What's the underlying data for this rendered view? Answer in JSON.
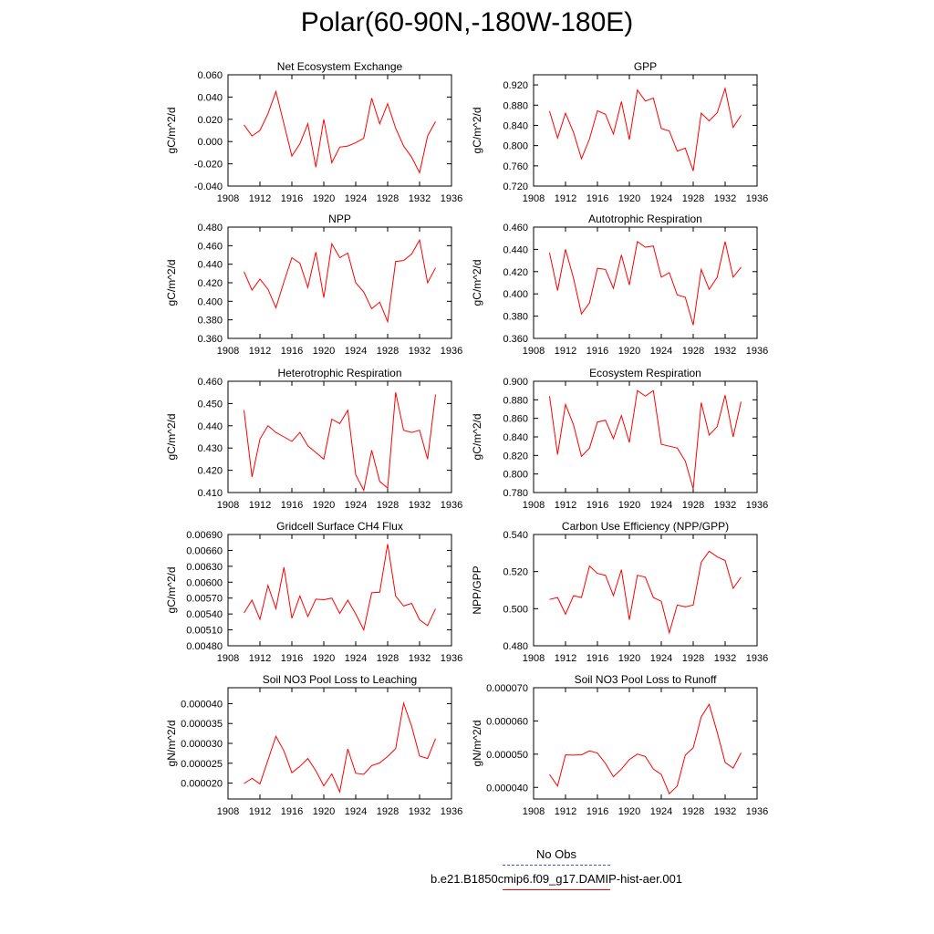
{
  "title": "Polar(60-90N,-180W-180E)",
  "colors": {
    "model": "#ff0000",
    "obs": "#4b4bd6",
    "axis": "#000000"
  },
  "legend": {
    "obs_label": "No Obs",
    "model_label": "b.e21.B1850cmip6.f09_g17.DAMIP-hist-aer.001"
  },
  "chart_data": [
    {
      "type": "line",
      "title": "Net Ecosystem Exchange",
      "xlabel": "",
      "ylabel": "gC/m^2/d",
      "xlim": [
        1908,
        1936
      ],
      "ylim": [
        -0.04,
        0.06
      ],
      "xticks": [
        1908,
        1912,
        1916,
        1920,
        1924,
        1928,
        1932,
        1936
      ],
      "xtick_labels": [
        "1908",
        "1912",
        "1916",
        "1920",
        "1924",
        "1928",
        "1932",
        "1936"
      ],
      "yticks": [
        -0.04,
        -0.02,
        0.0,
        0.02,
        0.04,
        0.06
      ],
      "ytick_labels": [
        "-0.040",
        "-0.020",
        "0.000",
        "0.020",
        "0.040",
        "0.060"
      ],
      "x": [
        1910,
        1911,
        1912,
        1913,
        1914,
        1915,
        1916,
        1917,
        1918,
        1919,
        1920,
        1921,
        1922,
        1923,
        1924,
        1925,
        1926,
        1927,
        1928,
        1929,
        1930,
        1931,
        1932,
        1933,
        1934
      ],
      "series": [
        {
          "values": [
            0.015,
            0.005,
            0.01,
            0.025,
            0.045,
            0.016,
            -0.013,
            -0.002,
            0.016,
            -0.023,
            0.02,
            -0.019,
            -0.005,
            -0.004,
            -0.001,
            0.003,
            0.039,
            0.016,
            0.034,
            0.012,
            -0.004,
            -0.014,
            -0.028,
            0.005,
            0.018
          ]
        }
      ]
    },
    {
      "type": "line",
      "title": "GPP",
      "xlabel": "",
      "ylabel": "gC/m^2/d",
      "xlim": [
        1908,
        1936
      ],
      "ylim": [
        0.72,
        0.94
      ],
      "xticks": [
        1908,
        1912,
        1916,
        1920,
        1924,
        1928,
        1932,
        1936
      ],
      "xtick_labels": [
        "1908",
        "1912",
        "1916",
        "1920",
        "1924",
        "1928",
        "1932",
        "1936"
      ],
      "yticks": [
        0.72,
        0.76,
        0.8,
        0.84,
        0.88,
        0.92
      ],
      "ytick_labels": [
        "0.720",
        "0.760",
        "0.800",
        "0.840",
        "0.880",
        "0.920"
      ],
      "x": [
        1910,
        1911,
        1912,
        1913,
        1914,
        1915,
        1916,
        1917,
        1918,
        1919,
        1920,
        1921,
        1922,
        1923,
        1924,
        1925,
        1926,
        1927,
        1928,
        1929,
        1930,
        1931,
        1932,
        1933,
        1934
      ],
      "series": [
        {
          "values": [
            0.868,
            0.815,
            0.864,
            0.826,
            0.774,
            0.813,
            0.869,
            0.862,
            0.823,
            0.887,
            0.812,
            0.91,
            0.888,
            0.894,
            0.834,
            0.829,
            0.789,
            0.795,
            0.75,
            0.864,
            0.849,
            0.865,
            0.913,
            0.836,
            0.86
          ]
        }
      ]
    },
    {
      "type": "line",
      "title": "NPP",
      "xlabel": "",
      "ylabel": "gC/m^2/d",
      "xlim": [
        1908,
        1936
      ],
      "ylim": [
        0.36,
        0.48
      ],
      "xticks": [
        1908,
        1912,
        1916,
        1920,
        1924,
        1928,
        1932,
        1936
      ],
      "xtick_labels": [
        "1908",
        "1912",
        "1916",
        "1920",
        "1924",
        "1928",
        "1932",
        "1936"
      ],
      "yticks": [
        0.36,
        0.38,
        0.4,
        0.42,
        0.44,
        0.46,
        0.48
      ],
      "ytick_labels": [
        "0.360",
        "0.380",
        "0.400",
        "0.420",
        "0.440",
        "0.460",
        "0.480"
      ],
      "x": [
        1910,
        1911,
        1912,
        1913,
        1914,
        1915,
        1916,
        1917,
        1918,
        1919,
        1920,
        1921,
        1922,
        1923,
        1924,
        1925,
        1926,
        1927,
        1928,
        1929,
        1930,
        1931,
        1932,
        1933,
        1934
      ],
      "series": [
        {
          "values": [
            0.432,
            0.412,
            0.424,
            0.413,
            0.393,
            0.421,
            0.447,
            0.441,
            0.415,
            0.453,
            0.404,
            0.462,
            0.447,
            0.452,
            0.42,
            0.41,
            0.392,
            0.399,
            0.378,
            0.443,
            0.444,
            0.451,
            0.466,
            0.42,
            0.436
          ]
        }
      ]
    },
    {
      "type": "line",
      "title": "Autotrophic Respiration",
      "xlabel": "",
      "ylabel": "gC/m^2/d",
      "xlim": [
        1908,
        1936
      ],
      "ylim": [
        0.36,
        0.46
      ],
      "xticks": [
        1908,
        1912,
        1916,
        1920,
        1924,
        1928,
        1932,
        1936
      ],
      "xtick_labels": [
        "1908",
        "1912",
        "1916",
        "1920",
        "1924",
        "1928",
        "1932",
        "1936"
      ],
      "yticks": [
        0.36,
        0.38,
        0.4,
        0.42,
        0.44,
        0.46
      ],
      "ytick_labels": [
        "0.360",
        "0.380",
        "0.400",
        "0.420",
        "0.440",
        "0.460"
      ],
      "x": [
        1910,
        1911,
        1912,
        1913,
        1914,
        1915,
        1916,
        1917,
        1918,
        1919,
        1920,
        1921,
        1922,
        1923,
        1924,
        1925,
        1926,
        1927,
        1928,
        1929,
        1930,
        1931,
        1932,
        1933,
        1934
      ],
      "series": [
        {
          "values": [
            0.437,
            0.403,
            0.44,
            0.414,
            0.382,
            0.392,
            0.423,
            0.422,
            0.405,
            0.435,
            0.408,
            0.447,
            0.442,
            0.443,
            0.415,
            0.419,
            0.399,
            0.397,
            0.372,
            0.422,
            0.404,
            0.415,
            0.447,
            0.415,
            0.424
          ]
        }
      ]
    },
    {
      "type": "line",
      "title": "Heterotrophic Respiration",
      "xlabel": "",
      "ylabel": "gC/m^2/d",
      "xlim": [
        1908,
        1936
      ],
      "ylim": [
        0.41,
        0.46
      ],
      "xticks": [
        1908,
        1912,
        1916,
        1920,
        1924,
        1928,
        1932,
        1936
      ],
      "xtick_labels": [
        "1908",
        "1912",
        "1916",
        "1920",
        "1924",
        "1928",
        "1932",
        "1936"
      ],
      "yticks": [
        0.41,
        0.42,
        0.43,
        0.44,
        0.45,
        0.46
      ],
      "ytick_labels": [
        "0.410",
        "0.420",
        "0.430",
        "0.440",
        "0.450",
        "0.460"
      ],
      "x": [
        1910,
        1911,
        1912,
        1913,
        1914,
        1915,
        1916,
        1917,
        1918,
        1919,
        1920,
        1921,
        1922,
        1923,
        1924,
        1925,
        1926,
        1927,
        1928,
        1929,
        1930,
        1931,
        1932,
        1933,
        1934
      ],
      "series": [
        {
          "values": [
            0.447,
            0.417,
            0.434,
            0.44,
            0.437,
            0.435,
            0.433,
            0.437,
            0.431,
            0.428,
            0.425,
            0.443,
            0.441,
            0.447,
            0.418,
            0.411,
            0.429,
            0.415,
            0.412,
            0.455,
            0.438,
            0.437,
            0.438,
            0.425,
            0.454
          ]
        }
      ]
    },
    {
      "type": "line",
      "title": "Ecosystem Respiration",
      "xlabel": "",
      "ylabel": "gC/m^2/d",
      "xlim": [
        1908,
        1936
      ],
      "ylim": [
        0.78,
        0.9
      ],
      "xticks": [
        1908,
        1912,
        1916,
        1920,
        1924,
        1928,
        1932,
        1936
      ],
      "xtick_labels": [
        "1908",
        "1912",
        "1916",
        "1920",
        "1924",
        "1928",
        "1932",
        "1936"
      ],
      "yticks": [
        0.78,
        0.8,
        0.82,
        0.84,
        0.86,
        0.88,
        0.9
      ],
      "ytick_labels": [
        "0.780",
        "0.800",
        "0.820",
        "0.840",
        "0.860",
        "0.880",
        "0.900"
      ],
      "x": [
        1910,
        1911,
        1912,
        1913,
        1914,
        1915,
        1916,
        1917,
        1918,
        1919,
        1920,
        1921,
        1922,
        1923,
        1924,
        1925,
        1926,
        1927,
        1928,
        1929,
        1930,
        1931,
        1932,
        1933,
        1934
      ],
      "series": [
        {
          "values": [
            0.884,
            0.821,
            0.875,
            0.853,
            0.819,
            0.828,
            0.856,
            0.858,
            0.838,
            0.863,
            0.834,
            0.89,
            0.884,
            0.89,
            0.832,
            0.83,
            0.828,
            0.814,
            0.784,
            0.877,
            0.842,
            0.851,
            0.885,
            0.84,
            0.878
          ]
        }
      ]
    },
    {
      "type": "line",
      "title": "Gridcell Surface CH4 Flux",
      "xlabel": "",
      "ylabel": "gC/m^2/d",
      "xlim": [
        1908,
        1936
      ],
      "ylim": [
        0.0048,
        0.0069
      ],
      "xticks": [
        1908,
        1912,
        1916,
        1920,
        1924,
        1928,
        1932,
        1936
      ],
      "xtick_labels": [
        "1908",
        "1912",
        "1916",
        "1920",
        "1924",
        "1928",
        "1932",
        "1936"
      ],
      "yticks": [
        0.0048,
        0.0051,
        0.0054,
        0.0057,
        0.006,
        0.0063,
        0.0066,
        0.0069
      ],
      "ytick_labels": [
        "0.00480",
        "0.00510",
        "0.00540",
        "0.00570",
        "0.00600",
        "0.00630",
        "0.00660",
        "0.00690"
      ],
      "x": [
        1910,
        1911,
        1912,
        1913,
        1914,
        1915,
        1916,
        1917,
        1918,
        1919,
        1920,
        1921,
        1922,
        1923,
        1924,
        1925,
        1926,
        1927,
        1928,
        1929,
        1930,
        1931,
        1932,
        1933,
        1934
      ],
      "series": [
        {
          "values": [
            0.00542,
            0.00566,
            0.0053,
            0.00594,
            0.0055,
            0.00628,
            0.00532,
            0.00574,
            0.00535,
            0.00568,
            0.00567,
            0.0057,
            0.00541,
            0.00566,
            0.0054,
            0.0051,
            0.0058,
            0.00581,
            0.00672,
            0.00574,
            0.00555,
            0.0056,
            0.00529,
            0.00518,
            0.0055
          ]
        }
      ]
    },
    {
      "type": "line",
      "title": "Carbon Use Efficiency (NPP/GPP)",
      "xlabel": "",
      "ylabel": "NPP/GPP",
      "xlim": [
        1908,
        1936
      ],
      "ylim": [
        0.48,
        0.54
      ],
      "xticks": [
        1908,
        1912,
        1916,
        1920,
        1924,
        1928,
        1932,
        1936
      ],
      "xtick_labels": [
        "1908",
        "1912",
        "1916",
        "1920",
        "1924",
        "1928",
        "1932",
        "1936"
      ],
      "yticks": [
        0.48,
        0.5,
        0.52,
        0.54
      ],
      "ytick_labels": [
        "0.480",
        "0.500",
        "0.520",
        "0.540"
      ],
      "x": [
        1910,
        1911,
        1912,
        1913,
        1914,
        1915,
        1916,
        1917,
        1918,
        1919,
        1920,
        1921,
        1922,
        1923,
        1924,
        1925,
        1926,
        1927,
        1928,
        1929,
        1930,
        1931,
        1932,
        1933,
        1934
      ],
      "series": [
        {
          "values": [
            0.505,
            0.506,
            0.497,
            0.507,
            0.506,
            0.523,
            0.519,
            0.518,
            0.507,
            0.521,
            0.494,
            0.518,
            0.517,
            0.506,
            0.504,
            0.487,
            0.502,
            0.501,
            0.502,
            0.525,
            0.531,
            0.528,
            0.526,
            0.511,
            0.517
          ]
        }
      ]
    },
    {
      "type": "line",
      "title": "Soil NO3 Pool Loss to Leaching",
      "xlabel": "",
      "ylabel": "gN/m^2/d",
      "xlim": [
        1908,
        1936
      ],
      "ylim": [
        1.6e-05,
        4.4e-05
      ],
      "xticks": [
        1908,
        1912,
        1916,
        1920,
        1924,
        1928,
        1932,
        1936
      ],
      "xtick_labels": [
        "1908",
        "1912",
        "1916",
        "1920",
        "1924",
        "1928",
        "1932",
        "1936"
      ],
      "yticks": [
        2e-05,
        2.5e-05,
        3e-05,
        3.5e-05,
        4e-05
      ],
      "ytick_labels": [
        "0.000020",
        "0.000025",
        "0.000030",
        "0.000035",
        "0.000040"
      ],
      "x": [
        1910,
        1911,
        1912,
        1913,
        1914,
        1915,
        1916,
        1917,
        1918,
        1919,
        1920,
        1921,
        1922,
        1923,
        1924,
        1925,
        1926,
        1927,
        1928,
        1929,
        1930,
        1931,
        1932,
        1933,
        1934
      ],
      "series": [
        {
          "values": [
            1.99e-05,
            2.12e-05,
            1.98e-05,
            2.58e-05,
            3.18e-05,
            2.81e-05,
            2.26e-05,
            2.42e-05,
            2.62e-05,
            2.31e-05,
            1.93e-05,
            2.23e-05,
            1.78e-05,
            2.86e-05,
            2.25e-05,
            2.22e-05,
            2.44e-05,
            2.51e-05,
            2.67e-05,
            2.87e-05,
            4.01e-05,
            3.43e-05,
            2.68e-05,
            2.62e-05,
            3.12e-05
          ]
        }
      ]
    },
    {
      "type": "line",
      "title": "Soil NO3 Pool Loss to Runoff",
      "xlabel": "",
      "ylabel": "gN/m^2/d",
      "xlim": [
        1908,
        1936
      ],
      "ylim": [
        3.65e-05,
        7e-05
      ],
      "xticks": [
        1908,
        1912,
        1916,
        1920,
        1924,
        1928,
        1932,
        1936
      ],
      "xtick_labels": [
        "1908",
        "1912",
        "1916",
        "1920",
        "1924",
        "1928",
        "1932",
        "1936"
      ],
      "yticks": [
        4e-05,
        5e-05,
        6e-05,
        7e-05
      ],
      "ytick_labels": [
        "0.000040",
        "0.000050",
        "0.000060",
        "0.000070"
      ],
      "x": [
        1910,
        1911,
        1912,
        1913,
        1914,
        1915,
        1916,
        1917,
        1918,
        1919,
        1920,
        1921,
        1922,
        1923,
        1924,
        1925,
        1926,
        1927,
        1928,
        1929,
        1930,
        1931,
        1932,
        1933,
        1934
      ],
      "series": [
        {
          "values": [
            4.39e-05,
            4.04e-05,
            4.98e-05,
            4.97e-05,
            4.98e-05,
            5.1e-05,
            5.03e-05,
            4.72e-05,
            4.32e-05,
            4.55e-05,
            4.84e-05,
            5e-05,
            4.93e-05,
            4.55e-05,
            4.39e-05,
            3.81e-05,
            4.04e-05,
            4.97e-05,
            5.19e-05,
            6.12e-05,
            6.5e-05,
            5.66e-05,
            4.75e-05,
            4.58e-05,
            5.04e-05
          ]
        }
      ]
    }
  ]
}
